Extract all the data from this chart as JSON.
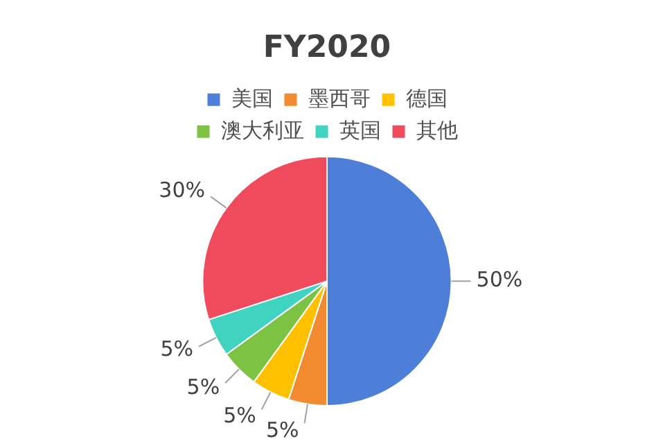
{
  "chart_data": {
    "type": "pie",
    "title": "FY2020",
    "categories": [
      "美国",
      "墨西哥",
      "德国",
      "澳大利亚",
      "英国",
      "其他"
    ],
    "values": [
      50,
      5,
      5,
      5,
      5,
      30
    ],
    "colors": [
      "#4e7fd8",
      "#f28b30",
      "#ffc000",
      "#7cc243",
      "#3fd3c0",
      "#f04b5c"
    ],
    "value_labels": [
      "50%",
      "5%",
      "5%",
      "5%",
      "5%",
      "30%"
    ],
    "legend": "top"
  }
}
